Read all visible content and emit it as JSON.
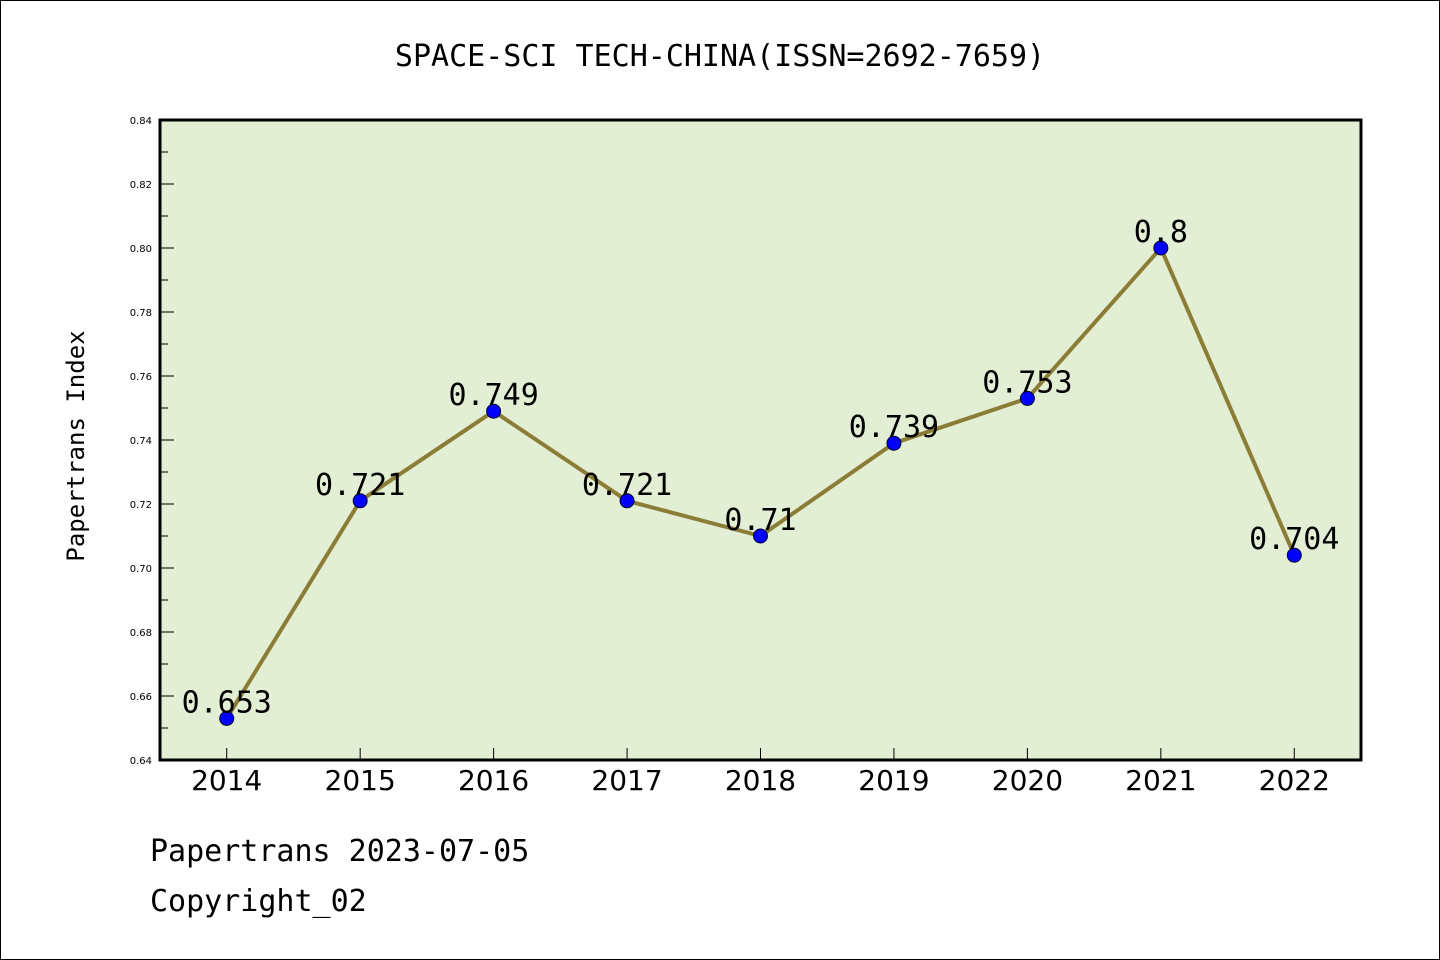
{
  "chart_data": {
    "type": "line",
    "title": "SPACE-SCI TECH-CHINA(ISSN=2692-7659)",
    "xlabel": "",
    "ylabel": "Papertrans Index",
    "categories": [
      "2014",
      "2015",
      "2016",
      "2017",
      "2018",
      "2019",
      "2020",
      "2021",
      "2022"
    ],
    "values": [
      0.653,
      0.721,
      0.749,
      0.721,
      0.71,
      0.739,
      0.753,
      0.8,
      0.704
    ],
    "data_labels": [
      "0.653",
      "0.721",
      "0.749",
      "0.721",
      "0.71",
      "0.739",
      "0.753",
      "0.8",
      "0.704"
    ],
    "ylim": [
      0.64,
      0.84
    ],
    "yticks": [
      "0.64",
      "0.66",
      "0.68",
      "0.70",
      "0.72",
      "0.74",
      "0.76",
      "0.78",
      "0.80",
      "0.82",
      "0.84"
    ],
    "grid": false,
    "legend": "none",
    "colors": {
      "plot_background": "#e2efd5",
      "line": "#8b7d35",
      "marker": "#0000ff",
      "axes": "#000000"
    }
  },
  "footer": {
    "date_text": "Papertrans 2023-07-05",
    "copyright_text": "Copyright_02"
  }
}
